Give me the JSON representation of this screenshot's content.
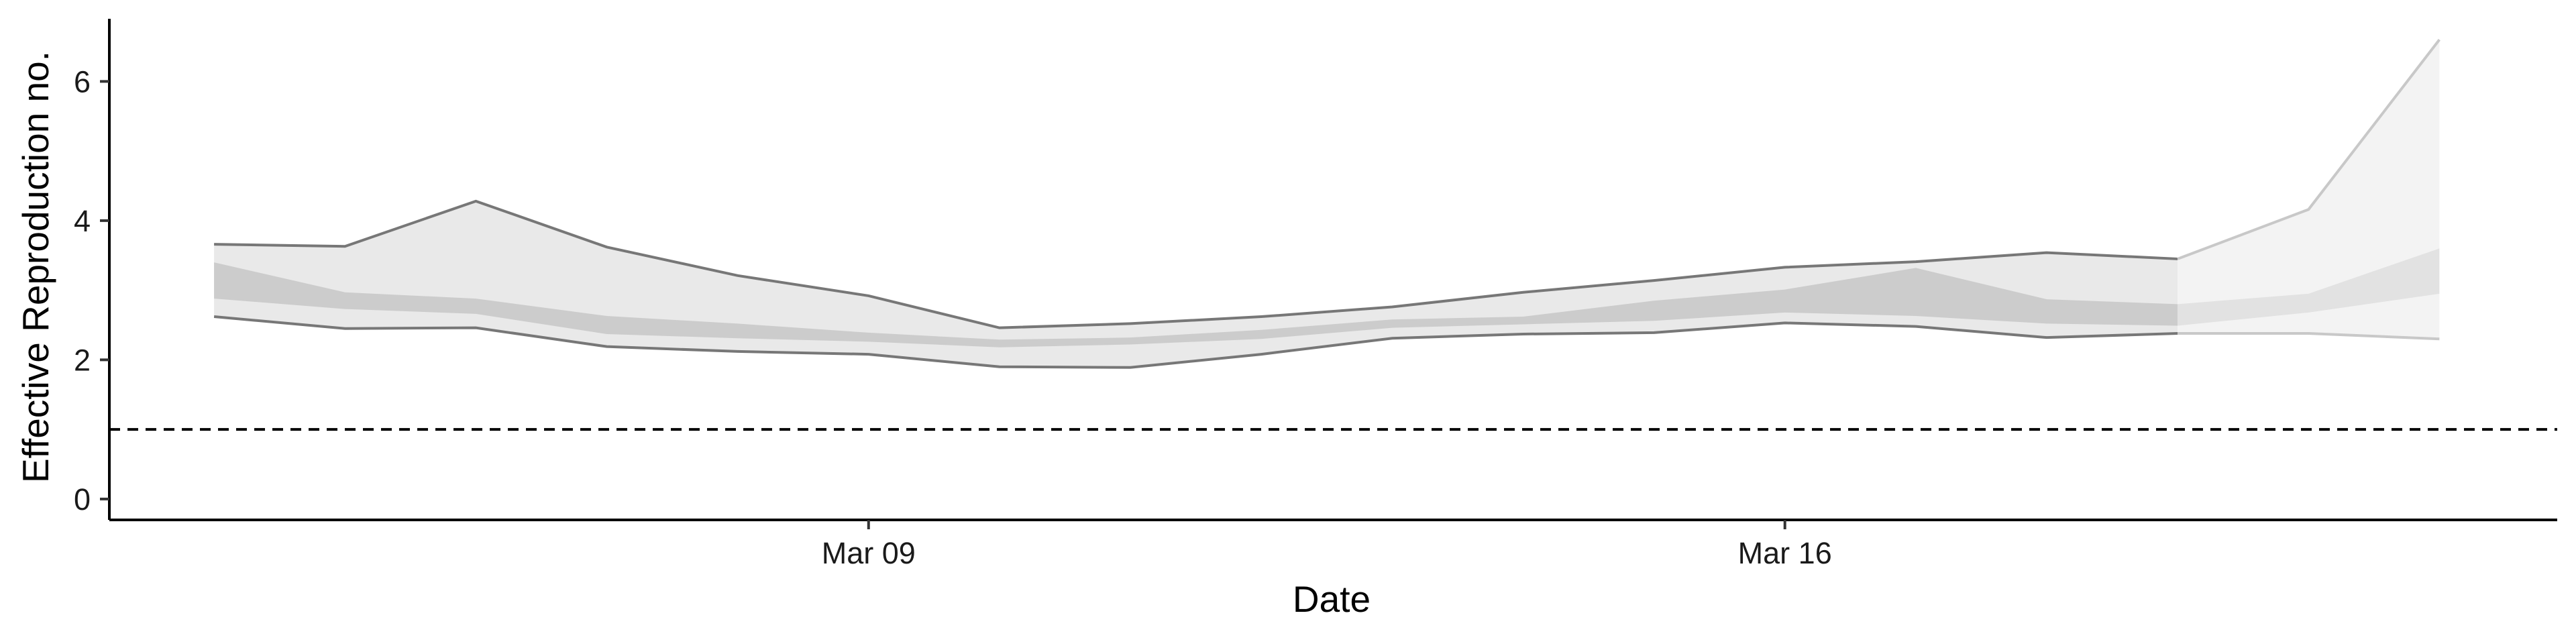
{
  "chart_data": {
    "type": "area",
    "title": "",
    "xlabel": "Date",
    "ylabel": "Effective Reproduction no.",
    "x_ticks": [
      "Mar 09",
      "Mar 16"
    ],
    "x_tick_days": [
      9,
      16
    ],
    "xlim_days": [
      3.2,
      21.9
    ],
    "x_unit": "day of March",
    "y_ticks": [
      0,
      2,
      4,
      6
    ],
    "ylim": [
      -0.3,
      6.9
    ],
    "grid": false,
    "legend": "none",
    "reference_line": {
      "y": 1,
      "style": "dashed"
    },
    "x_days": [
      4,
      5,
      6,
      7,
      8,
      9,
      10,
      11,
      12,
      13,
      14,
      15,
      16,
      17,
      18,
      19,
      20,
      21
    ],
    "band_90": {
      "upper": [
        3.66,
        3.63,
        4.28,
        3.62,
        3.21,
        2.92,
        2.46,
        2.52,
        2.62,
        2.76,
        2.97,
        3.14,
        3.33,
        3.41,
        3.54,
        3.45,
        4.16,
        6.6
      ],
      "lower": [
        2.62,
        2.45,
        2.46,
        2.19,
        2.12,
        2.08,
        1.9,
        1.89,
        2.08,
        2.31,
        2.37,
        2.39,
        2.53,
        2.48,
        2.32,
        2.38,
        2.38,
        2.3
      ]
    },
    "band_50": {
      "upper": [
        3.4,
        2.97,
        2.88,
        2.63,
        2.52,
        2.39,
        2.29,
        2.32,
        2.43,
        2.58,
        2.62,
        2.85,
        3.01,
        3.32,
        2.87,
        2.8,
        2.95,
        3.6
      ],
      "lower": [
        2.88,
        2.73,
        2.66,
        2.37,
        2.31,
        2.26,
        2.18,
        2.22,
        2.3,
        2.46,
        2.51,
        2.56,
        2.68,
        2.63,
        2.52,
        2.49,
        2.68,
        2.95
      ]
    },
    "estimate_type_split_day": 19
  },
  "colors": {
    "band_90": "#e9e9e9",
    "band_50": "#cccccc",
    "band_90_forecast": "#f3f3f3",
    "band_50_forecast": "#e2e2e2",
    "outline": "#777777",
    "outline_forecast": "#c8c8c8",
    "axis": "#000000"
  }
}
